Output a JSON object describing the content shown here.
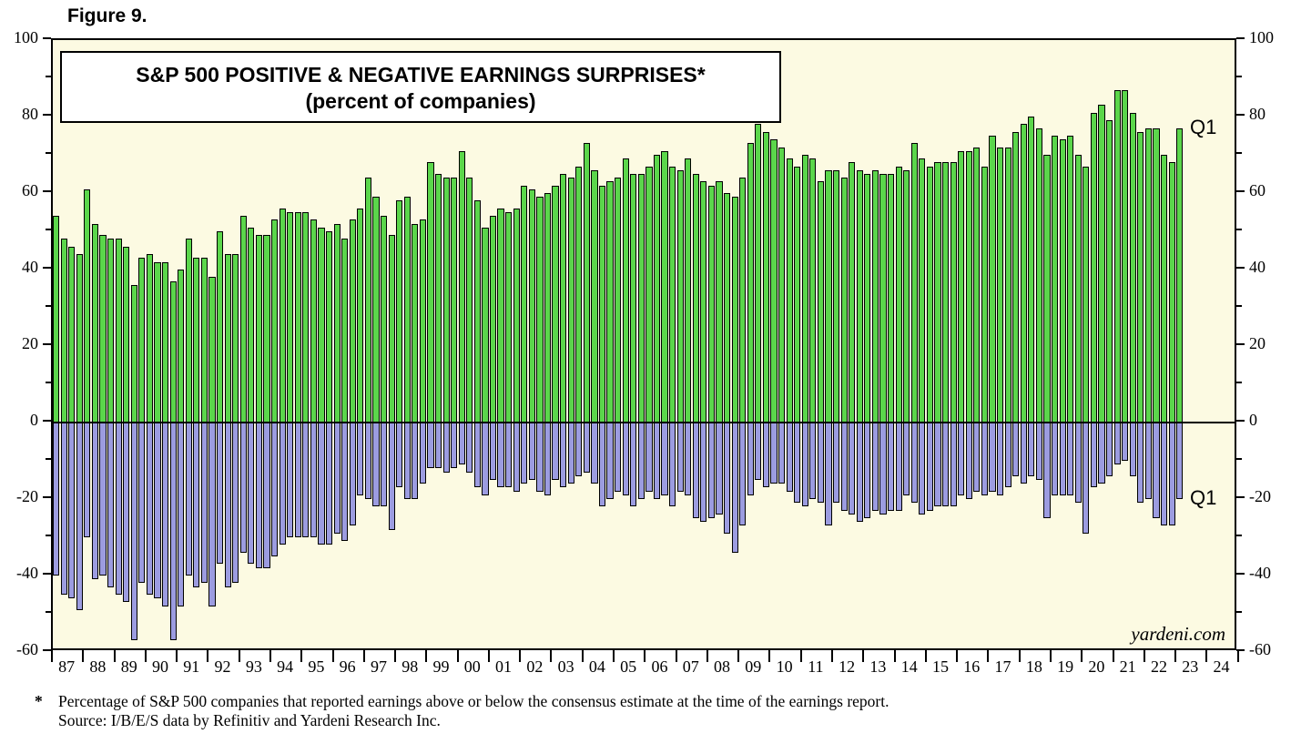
{
  "figure_label": "Figure 9.",
  "watermark": "yardeni.com",
  "annotations": {
    "q1_positive": "Q1",
    "q1_negative": "Q1"
  },
  "footnote": {
    "star": "*",
    "line1": "Percentage of S&P 500 companies that reported earnings above or below the consensus estimate at the time of the earnings report.",
    "line2": "Source: I/B/E/S data by Refinitiv and Yardeni Research Inc."
  },
  "chart_data": {
    "type": "bar",
    "title": "S&P 500 POSITIVE & NEGATIVE EARNINGS SURPRISES*",
    "subtitle": "(percent of companies)",
    "ylabel": "",
    "xlabel": "",
    "ylim": [
      -60,
      100
    ],
    "y_ticks": [
      100,
      80,
      60,
      40,
      20,
      0,
      -20,
      -40,
      -60
    ],
    "y_minor_ticks": [
      90,
      70,
      50,
      30,
      10,
      -10,
      -30,
      -50
    ],
    "grid": false,
    "legend_position": "none",
    "plot_background": "#FCFAE2",
    "colors": {
      "positive": "#5BD64B",
      "negative": "#9C9CE0",
      "bar_border": "#000000"
    },
    "quarters_span": "1987Q1 to 2023Q1, 4 bars per year",
    "x_labels": [
      "87",
      "88",
      "89",
      "90",
      "91",
      "92",
      "93",
      "94",
      "95",
      "96",
      "97",
      "98",
      "99",
      "00",
      "01",
      "02",
      "03",
      "04",
      "05",
      "06",
      "07",
      "08",
      "09",
      "10",
      "11",
      "12",
      "13",
      "14",
      "15",
      "16",
      "17",
      "18",
      "19",
      "20",
      "21",
      "22",
      "23",
      "24"
    ],
    "series": [
      {
        "name": "Positive earnings surprises (% of companies)",
        "by_year": {
          "87": [
            54,
            48,
            46,
            44
          ],
          "88": [
            61,
            52,
            49,
            48
          ],
          "89": [
            48,
            46,
            36,
            43
          ],
          "90": [
            44,
            42,
            42,
            37
          ],
          "91": [
            40,
            48,
            43,
            43
          ],
          "92": [
            38,
            50,
            44,
            44
          ],
          "93": [
            54,
            51,
            49,
            49
          ],
          "94": [
            53,
            56,
            55,
            55
          ],
          "95": [
            55,
            53,
            51,
            50
          ],
          "96": [
            52,
            48,
            53,
            56
          ],
          "97": [
            64,
            59,
            54,
            49
          ],
          "98": [
            58,
            59,
            52,
            53
          ],
          "99": [
            68,
            65,
            64,
            64
          ],
          "00": [
            71,
            64,
            58,
            51
          ],
          "01": [
            54,
            56,
            55,
            56
          ],
          "02": [
            62,
            61,
            59,
            60
          ],
          "03": [
            62,
            65,
            64,
            67
          ],
          "04": [
            73,
            66,
            62,
            63
          ],
          "05": [
            64,
            69,
            65,
            65
          ],
          "06": [
            67,
            70,
            71,
            67
          ],
          "07": [
            66,
            69,
            65,
            63
          ],
          "08": [
            62,
            63,
            60,
            59
          ],
          "09": [
            64,
            73,
            78,
            76
          ],
          "10": [
            74,
            72,
            69,
            67
          ],
          "11": [
            70,
            69,
            63,
            66
          ],
          "12": [
            66,
            64,
            68,
            66
          ],
          "13": [
            65,
            66,
            65,
            65
          ],
          "14": [
            67,
            66,
            73,
            69
          ],
          "15": [
            67,
            68,
            68,
            68
          ],
          "16": [
            71,
            71,
            72,
            67
          ],
          "17": [
            75,
            72,
            72,
            76
          ],
          "18": [
            78,
            80,
            77,
            70
          ],
          "19": [
            75,
            74,
            75,
            70
          ],
          "20": [
            67,
            81,
            83,
            79
          ],
          "21": [
            87,
            87,
            81,
            76
          ],
          "22": [
            77,
            77,
            70,
            68
          ],
          "23": [
            77
          ]
        }
      },
      {
        "name": "Negative earnings surprises (% of companies)",
        "by_year": {
          "87": [
            -40,
            -45,
            -46,
            -49
          ],
          "88": [
            -30,
            -41,
            -40,
            -43
          ],
          "89": [
            -45,
            -47,
            -57,
            -42
          ],
          "90": [
            -45,
            -46,
            -48,
            -57
          ],
          "91": [
            -48,
            -40,
            -43,
            -42
          ],
          "92": [
            -48,
            -37,
            -43,
            -42
          ],
          "93": [
            -34,
            -37,
            -38,
            -38
          ],
          "94": [
            -35,
            -32,
            -30,
            -30
          ],
          "95": [
            -30,
            -30,
            -32,
            -32
          ],
          "96": [
            -29,
            -31,
            -27,
            -19
          ],
          "97": [
            -20,
            -22,
            -22,
            -28
          ],
          "98": [
            -17,
            -20,
            -20,
            -16
          ],
          "99": [
            -12,
            -12,
            -13,
            -12
          ],
          "00": [
            -11,
            -13,
            -17,
            -19
          ],
          "01": [
            -15,
            -17,
            -17,
            -18
          ],
          "02": [
            -16,
            -15,
            -18,
            -19
          ],
          "03": [
            -15,
            -17,
            -16,
            -14
          ],
          "04": [
            -13,
            -16,
            -22,
            -20
          ],
          "05": [
            -18,
            -19,
            -22,
            -20
          ],
          "06": [
            -18,
            -20,
            -19,
            -22
          ],
          "07": [
            -18,
            -19,
            -25,
            -26
          ],
          "08": [
            -25,
            -24,
            -29,
            -34
          ],
          "09": [
            -27,
            -19,
            -15,
            -17
          ],
          "10": [
            -16,
            -16,
            -18,
            -21
          ],
          "11": [
            -22,
            -20,
            -21,
            -27
          ],
          "12": [
            -21,
            -23,
            -24,
            -26
          ],
          "13": [
            -25,
            -23,
            -24,
            -23
          ],
          "14": [
            -23,
            -19,
            -21,
            -24
          ],
          "15": [
            -23,
            -22,
            -22,
            -22
          ],
          "16": [
            -19,
            -20,
            -18,
            -19
          ],
          "17": [
            -18,
            -19,
            -17,
            -14
          ],
          "18": [
            -16,
            -14,
            -15,
            -25
          ],
          "19": [
            -19,
            -19,
            -19,
            -21
          ],
          "20": [
            -29,
            -17,
            -16,
            -14
          ],
          "21": [
            -11,
            -10,
            -14,
            -21
          ],
          "22": [
            -20,
            -25,
            -27,
            -27
          ],
          "23": [
            -20
          ]
        }
      }
    ]
  }
}
